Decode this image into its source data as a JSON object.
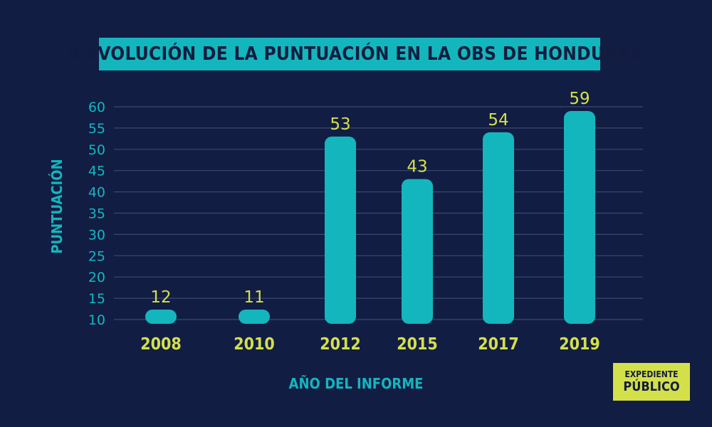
{
  "colors": {
    "background": "#121d44",
    "accent": "#14b6bd",
    "value_label": "#d4e04a",
    "gridline": "#3a4870",
    "title_text": "#131c40"
  },
  "chart_data": {
    "type": "bar",
    "title": "LA EVOLUCIÓN DE LA PUNTUACIÓN EN LA OBS DE HONDURAS",
    "xlabel": "AÑO DEL INFORME",
    "ylabel": "PUNTUACIÓN",
    "categories": [
      "2008",
      "2010",
      "2012",
      "2015",
      "2017",
      "2019"
    ],
    "values": [
      12,
      11,
      53,
      43,
      54,
      59
    ],
    "ylim": [
      10,
      60
    ],
    "yticks": [
      10,
      15,
      20,
      25,
      30,
      35,
      40,
      45,
      50,
      55,
      60
    ],
    "grid": true,
    "data_labels": true
  },
  "logo": {
    "line1": "EXPEDIENTE",
    "line2": "PÚBLICO"
  }
}
